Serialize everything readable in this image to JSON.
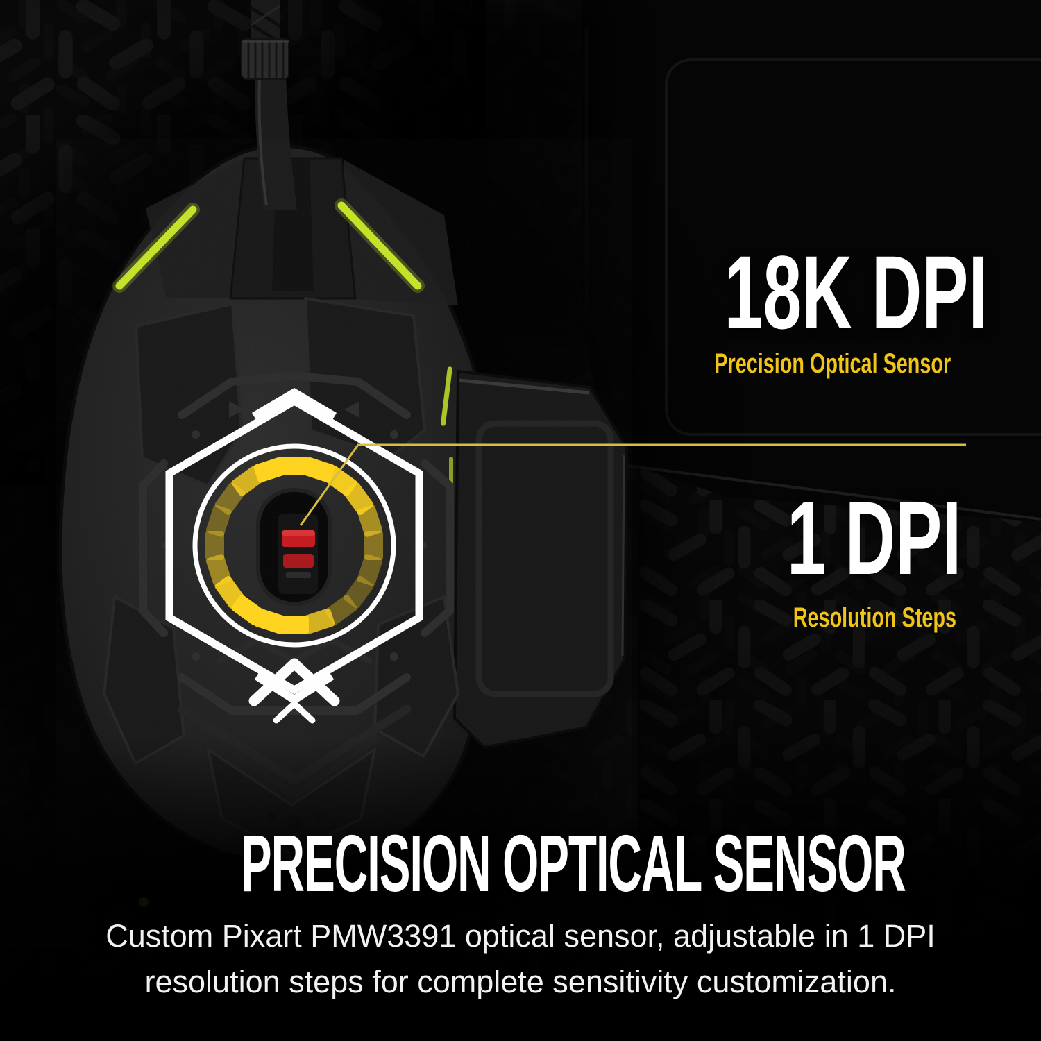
{
  "colors": {
    "background": "#060606",
    "stat_white": "#ffffff",
    "accent_yellow": "#f0c419",
    "ring_yellow": "#ffd41e",
    "callout_yellow": "#d9bd3e",
    "lime_accent": "#c6e227",
    "sensor_red": "#c41a1f"
  },
  "callouts": {
    "stat_primary": {
      "value": "18K DPI",
      "label": "Precision Optical Sensor"
    },
    "stat_secondary": {
      "value": "1 DPI",
      "label": "Resolution Steps"
    }
  },
  "footer": {
    "headline": "PRECISION OPTICAL SENSOR",
    "description_line1": "Custom Pixart PMW3391 optical sensor, adjustable in 1 DPI",
    "description_line2": "resolution steps for complete sensitivity customization."
  },
  "sensor_ring": {
    "segment_count": 20,
    "opacities": [
      1,
      1,
      0.95,
      0.85,
      0.6,
      0.45,
      0.35,
      0.3,
      0.35,
      0.8,
      1,
      1,
      1,
      0.9,
      0.55,
      0.4,
      0.35,
      0.4,
      0.8,
      1
    ]
  }
}
